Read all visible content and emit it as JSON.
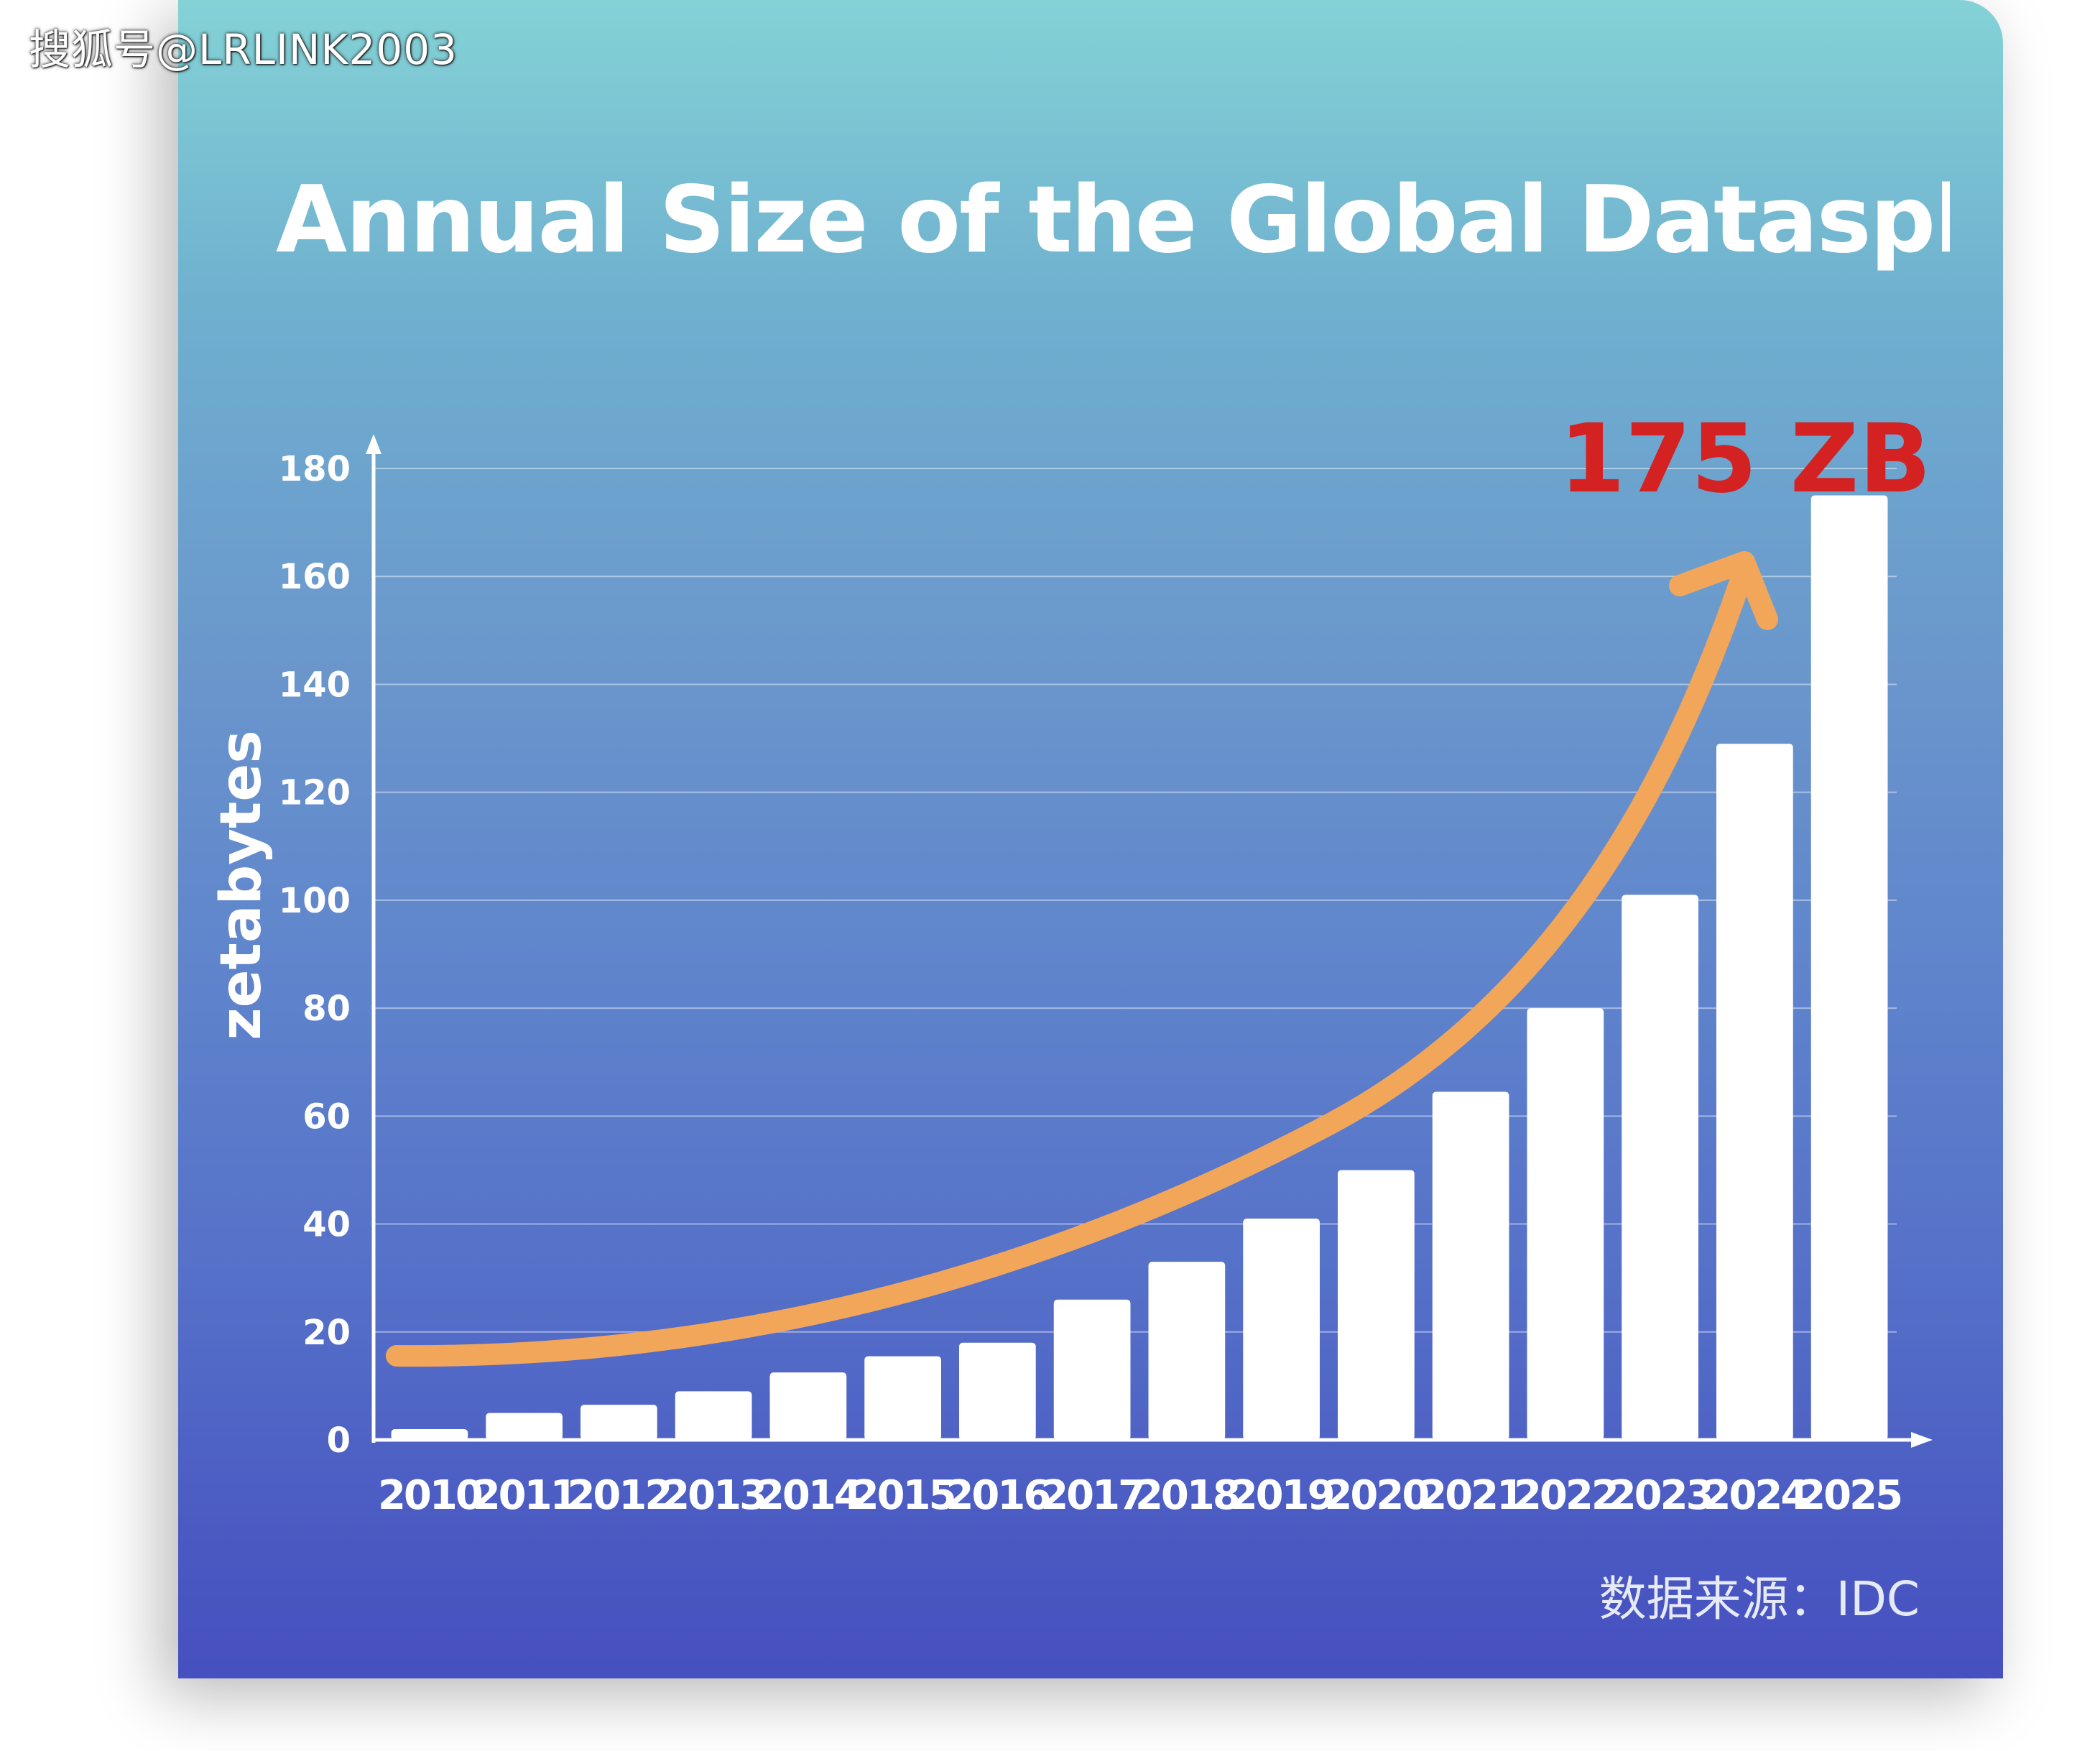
{
  "watermark": "搜狐号@LRLINK2003",
  "source_note": "数据来源：IDC",
  "colors": {
    "card_top": "#84d2d6",
    "card_bottom": "#4650c0",
    "bars": "#ffffff",
    "trend_arrow": "#f2a65a",
    "callout": "#d42121"
  },
  "chart_data": {
    "type": "bar",
    "title": "Annual Size of the Global Datasphere",
    "xlabel": "",
    "ylabel": "zetabytes",
    "categories": [
      "2010",
      "2011",
      "2012",
      "2013",
      "2014",
      "2015",
      "2016",
      "2017",
      "2018",
      "2019",
      "2020",
      "2021",
      "2022",
      "2023",
      "2024",
      "2025"
    ],
    "values": [
      2,
      5,
      6.5,
      9,
      12.5,
      15.5,
      18,
      26,
      33,
      41,
      50,
      64.5,
      80,
      101,
      129,
      175
    ],
    "ylim": [
      0,
      180
    ],
    "yticks": [
      "0",
      "20",
      "40",
      "60",
      "80",
      "100",
      "120",
      "140",
      "160",
      "180"
    ],
    "grid": true,
    "legend": "none",
    "annotation": "175 ZB"
  }
}
